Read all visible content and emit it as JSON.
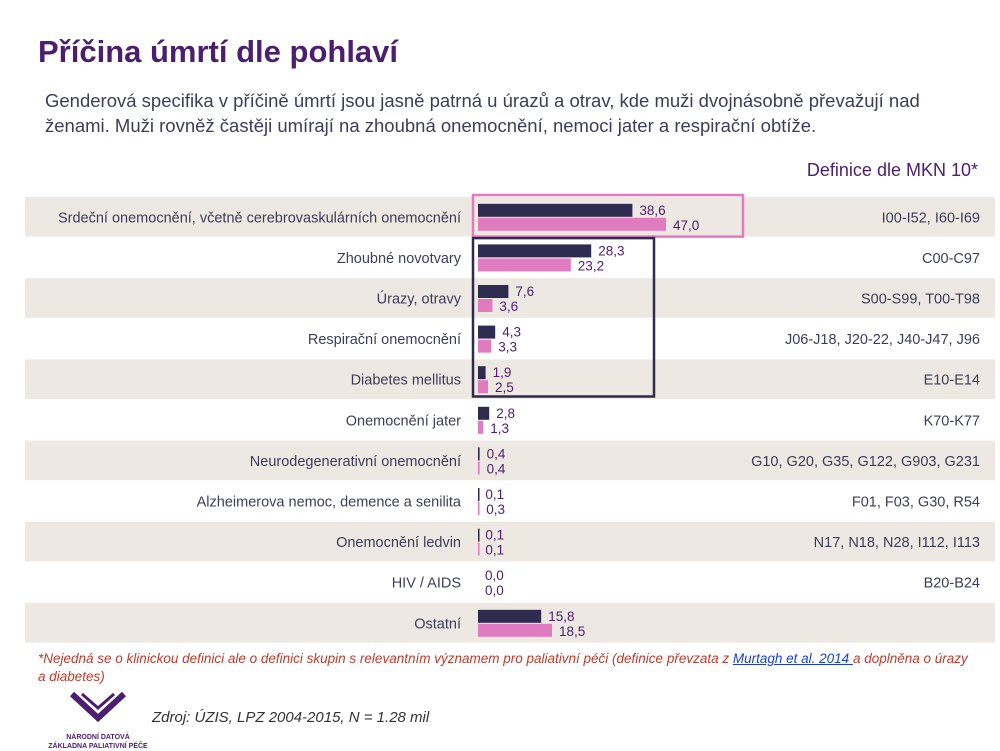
{
  "title": "Příčina úmrtí dle pohlaví",
  "subtitle": "Genderová specifika v příčině úmrtí jsou jasně patrná u úrazů a otrav, kde muži dvojnásobně převažují nad ženami. Muži rovněž častěji umírají na zhoubná onemocnění, nemoci jater a respirační obtíže.",
  "definition_header": "Definice dle MKN 10*",
  "footnote": {
    "text_before": "*Nejedná se o klinickou definici ale o definici skupin s relevantním významem pro paliativní péči (definice převzata z ",
    "link_text": "Murtagh et al. 2014 ",
    "text_after": "a doplněna o úrazy a diabetes)"
  },
  "source": "Zdroj: ÚZIS, LPZ 2004-2015, N = 1.28 mil",
  "logo": {
    "line1": "NÁRODNÍ DATOVÁ",
    "line2": "ZÁKLADNA PALIATIVNÍ PÉČE"
  },
  "colors": {
    "men": "#2e2b4f",
    "women": "#e07bbf",
    "row_band": "#ede9e2",
    "label": "#3d3d5a",
    "value": "#4b1e6e",
    "highlight_pink": "#e07bbf",
    "highlight_navy": "#2e2b4f"
  },
  "chart_data": {
    "type": "bar",
    "orientation": "horizontal",
    "categories": [
      "Srdeční onemocnění, včetně cerebrovaskulárních onemocnění",
      "Zhoubné novotvary",
      "Úrazy, otravy",
      "Respirační onemocnění",
      "Diabetes mellitus",
      "Onemocnění jater",
      "Neurodegenerativní onemocnění",
      "Alzheimerova nemoc, demence a senilita",
      "Onemocnění ledvin",
      "HIV / AIDS",
      "Ostatní"
    ],
    "series": [
      {
        "values": [
          38.6,
          28.3,
          7.6,
          4.3,
          1.9,
          2.8,
          0.4,
          0.1,
          0.1,
          0.0,
          15.8
        ],
        "labels": [
          "38,6",
          "28,3",
          "7,6",
          "4,3",
          "1,9",
          "2,8",
          "0,4",
          "0,1",
          "0,1",
          "0,0",
          "15,8"
        ]
      },
      {
        "values": [
          47.0,
          23.2,
          3.6,
          3.3,
          2.5,
          1.3,
          0.4,
          0.3,
          0.1,
          0.0,
          18.5
        ],
        "labels": [
          "47,0",
          "23,2",
          "3,6",
          "3,3",
          "2,5",
          "1,3",
          "0,4",
          "0,3",
          "0,1",
          "0,0",
          "18,5"
        ]
      }
    ],
    "definitions": [
      "I00-I52, I60-I69",
      "C00-C97",
      "S00-S99, T00-T98",
      "J06-J18, J20-22, J40-J47, J96",
      "E10-E14",
      "K70-K77",
      "G10, G20, G35, G122, G903, G231",
      "F01, F03, G30, R54",
      "N17, N18, N28, I112, I113",
      "B20-B24",
      ""
    ],
    "xlim": [
      0,
      50
    ],
    "grid": false,
    "legend": "none"
  }
}
